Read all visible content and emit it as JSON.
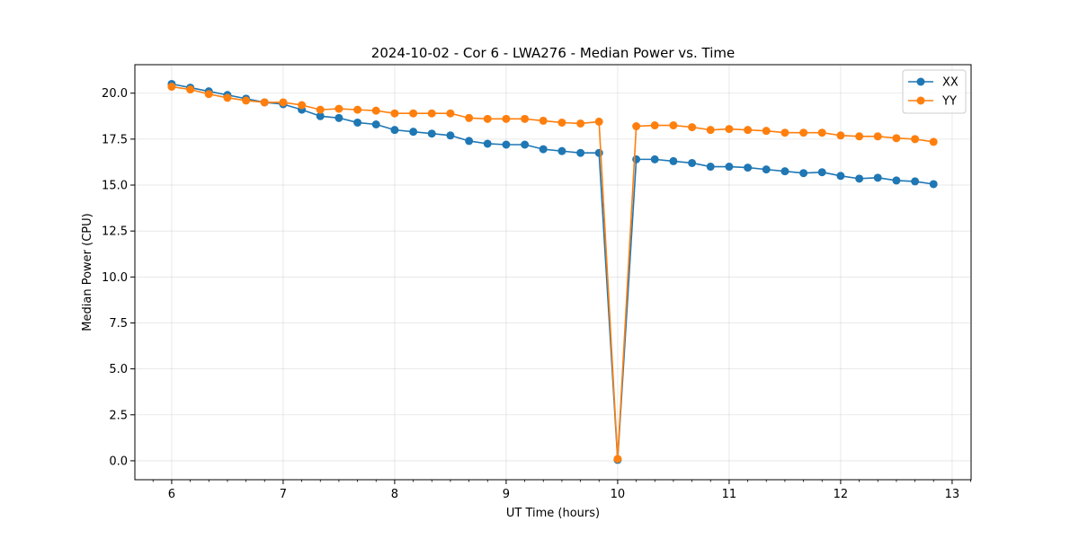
{
  "chart_data": {
    "type": "line",
    "title": "2024-10-02 - Cor 6 - LWA276 - Median Power vs. Time",
    "xlabel": "UT Time (hours)",
    "ylabel": "Median Power (CPU)",
    "xlim": [
      5.67,
      13.17
    ],
    "ylim": [
      -1.03,
      21.55
    ],
    "xticks": [
      6,
      7,
      8,
      9,
      10,
      11,
      12,
      13
    ],
    "yticks": [
      0.0,
      2.5,
      5.0,
      7.5,
      10.0,
      12.5,
      15.0,
      17.5,
      20.0
    ],
    "grid": true,
    "legend_position": "top-right",
    "x": [
      6.0,
      6.167,
      6.333,
      6.5,
      6.667,
      6.833,
      7.0,
      7.167,
      7.333,
      7.5,
      7.667,
      7.833,
      8.0,
      8.167,
      8.333,
      8.5,
      8.667,
      8.833,
      9.0,
      9.167,
      9.333,
      9.5,
      9.667,
      9.833,
      10.0,
      10.167,
      10.333,
      10.5,
      10.667,
      10.833,
      11.0,
      11.167,
      11.333,
      11.5,
      11.667,
      11.833,
      12.0,
      12.167,
      12.333,
      12.5,
      12.667,
      12.833
    ],
    "series": [
      {
        "name": "XX",
        "color": "#1f77b4",
        "values": [
          20.5,
          20.3,
          20.1,
          19.9,
          19.7,
          19.5,
          19.4,
          19.1,
          18.75,
          18.65,
          18.4,
          18.3,
          18.0,
          17.9,
          17.8,
          17.7,
          17.4,
          17.25,
          17.2,
          17.2,
          16.95,
          16.85,
          16.75,
          16.75,
          0.05,
          16.4,
          16.4,
          16.3,
          16.2,
          16.0,
          16.0,
          15.95,
          15.85,
          15.75,
          15.65,
          15.7,
          15.5,
          15.35,
          15.4,
          15.25,
          15.2,
          15.05
        ]
      },
      {
        "name": "YY",
        "color": "#ff7f0e",
        "values": [
          20.35,
          20.2,
          19.95,
          19.75,
          19.6,
          19.5,
          19.5,
          19.35,
          19.1,
          19.15,
          19.1,
          19.05,
          18.9,
          18.9,
          18.9,
          18.9,
          18.65,
          18.6,
          18.6,
          18.6,
          18.5,
          18.4,
          18.35,
          18.45,
          0.1,
          18.2,
          18.25,
          18.25,
          18.15,
          18.0,
          18.05,
          18.0,
          17.95,
          17.85,
          17.85,
          17.85,
          17.7,
          17.65,
          17.65,
          17.55,
          17.5,
          17.35
        ]
      }
    ]
  }
}
